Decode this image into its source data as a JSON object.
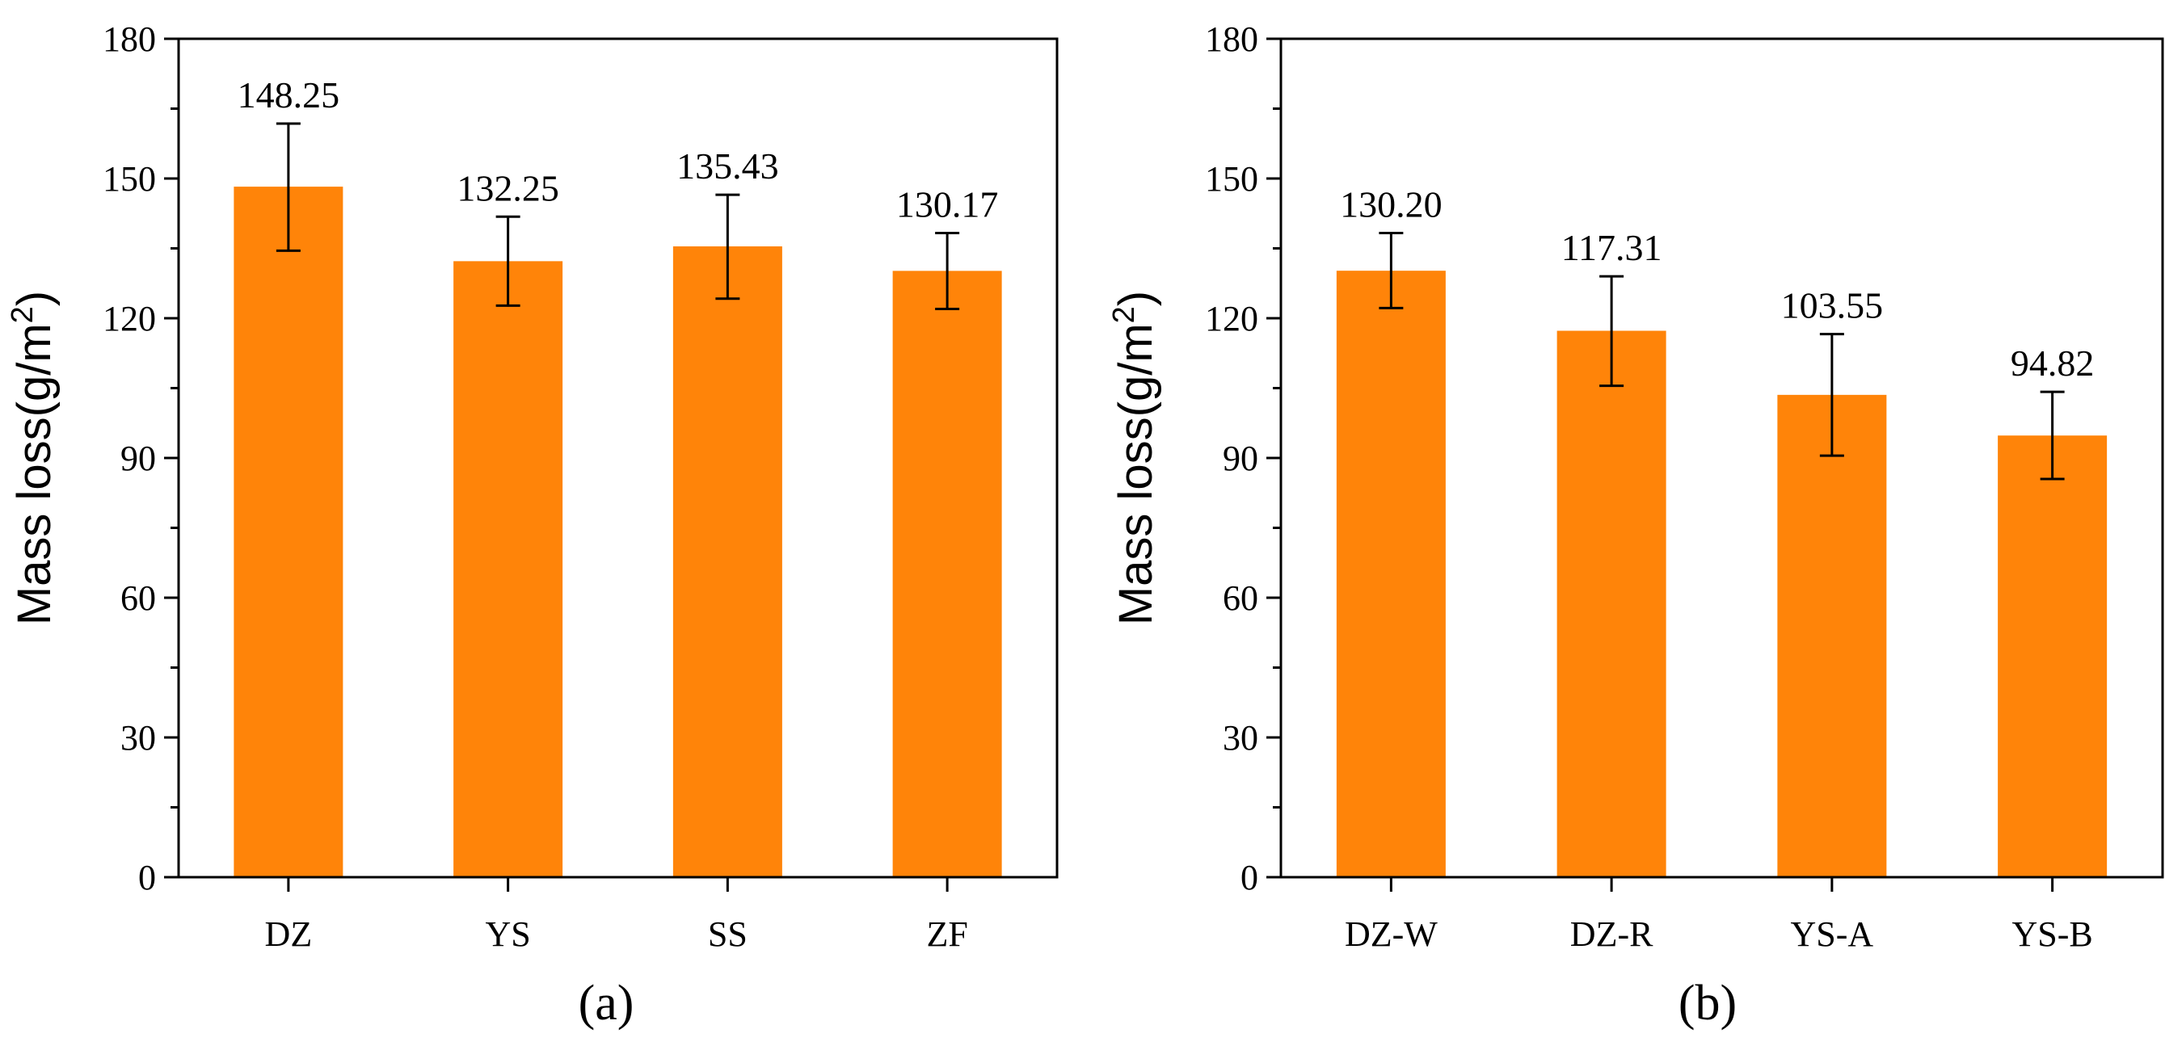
{
  "bar_color": "#FF8409",
  "chart_data": [
    {
      "type": "bar",
      "panel_label": "(a)",
      "categories": [
        "DZ",
        "YS",
        "SS",
        "ZF"
      ],
      "values": [
        148.25,
        132.25,
        135.43,
        130.17
      ],
      "value_labels": [
        "148.25",
        "132.25",
        "135.43",
        "130.17"
      ],
      "error_low": [
        134.5,
        122.7,
        124.2,
        122.0
      ],
      "error_high": [
        161.8,
        141.8,
        146.5,
        138.3
      ],
      "ylabel": "Mass loss(g/m",
      "ylabel_sup": "2",
      "ylabel_end": ")",
      "ylim": [
        0,
        180
      ],
      "yticks": [
        0,
        30,
        60,
        90,
        120,
        150,
        180
      ],
      "grid": false
    },
    {
      "type": "bar",
      "panel_label": "(b)",
      "categories": [
        "DZ-W",
        "DZ-R",
        "YS-A",
        "YS-B"
      ],
      "values": [
        130.2,
        117.31,
        103.55,
        94.82
      ],
      "value_labels": [
        "130.20",
        "117.31",
        "103.55",
        "94.82"
      ],
      "error_low": [
        122.2,
        105.5,
        90.5,
        85.5
      ],
      "error_high": [
        138.3,
        129.0,
        116.6,
        104.2
      ],
      "ylabel": "Mass loss(g/m",
      "ylabel_sup": "2",
      "ylabel_end": ")",
      "ylim": [
        0,
        180
      ],
      "yticks": [
        0,
        30,
        60,
        90,
        120,
        150,
        180
      ],
      "grid": false
    }
  ]
}
